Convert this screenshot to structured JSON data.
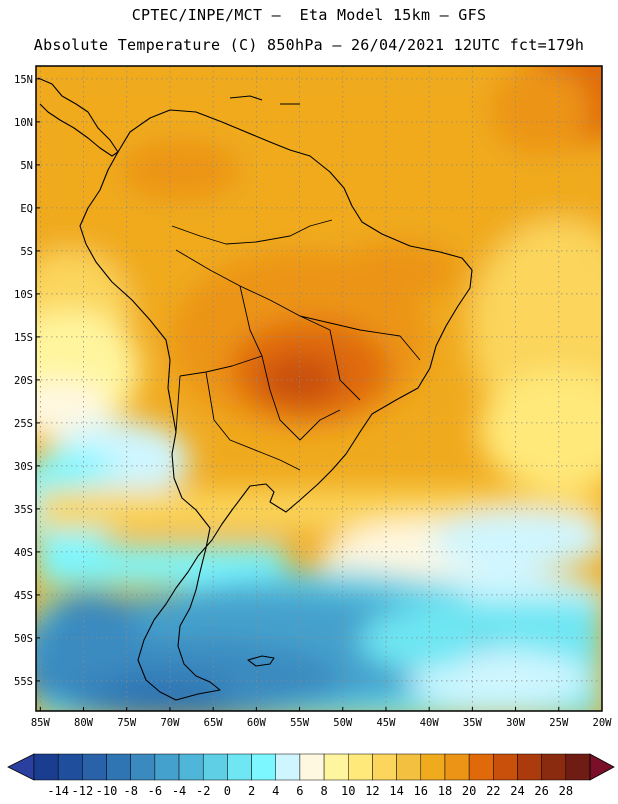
{
  "header": {
    "line1": "CPTEC/INPE/MCT –  Eta Model 15km – GFS",
    "line2": "Absolute Temperature (C) 850hPa – 26/04/2021 12UTC fct=179h"
  },
  "axes": {
    "lat_labels": [
      "15N",
      "10N",
      "5N",
      "EQ",
      "5S",
      "10S",
      "15S",
      "20S",
      "25S",
      "30S",
      "35S",
      "40S",
      "45S",
      "50S",
      "55S"
    ],
    "lat_values": [
      15,
      10,
      5,
      0,
      -5,
      -10,
      -15,
      -20,
      -25,
      -30,
      -35,
      -40,
      -45,
      -50,
      -55
    ],
    "lon_labels": [
      "85W",
      "80W",
      "75W",
      "70W",
      "65W",
      "60W",
      "55W",
      "50W",
      "45W",
      "40W",
      "35W",
      "30W",
      "25W",
      "20W"
    ],
    "lon_values": [
      -85,
      -80,
      -75,
      -70,
      -65,
      -60,
      -55,
      -50,
      -45,
      -40,
      -35,
      -30,
      -25,
      -20
    ],
    "lon_range": [
      -85.5,
      -20
    ],
    "lat_range": [
      -58.5,
      16.5
    ]
  },
  "colorbar": {
    "labels": [
      "-14",
      "-12",
      "-10",
      "-8",
      "-6",
      "-4",
      "-2",
      "0",
      "2",
      "4",
      "6",
      "8",
      "10",
      "12",
      "14",
      "16",
      "18",
      "20",
      "22",
      "24",
      "26",
      "28"
    ],
    "colors": [
      "#1a3d8f",
      "#1f4e9c",
      "#2a62a9",
      "#2f75b4",
      "#3a8ac0",
      "#44a0cc",
      "#4fb6d9",
      "#5fcfe6",
      "#6ee6f3",
      "#7df7ff",
      "#cff6ff",
      "#fff8e1",
      "#fff59e",
      "#ffe97a",
      "#fbd55c",
      "#f3c040",
      "#f0aa1e",
      "#ec9415",
      "#e06a0a",
      "#c8500a",
      "#ab3a0c",
      "#8a2a0f",
      "#6e1c14"
    ],
    "low_arrow": "#2a3f9e",
    "high_arrow": "#7a0f2a"
  }
}
